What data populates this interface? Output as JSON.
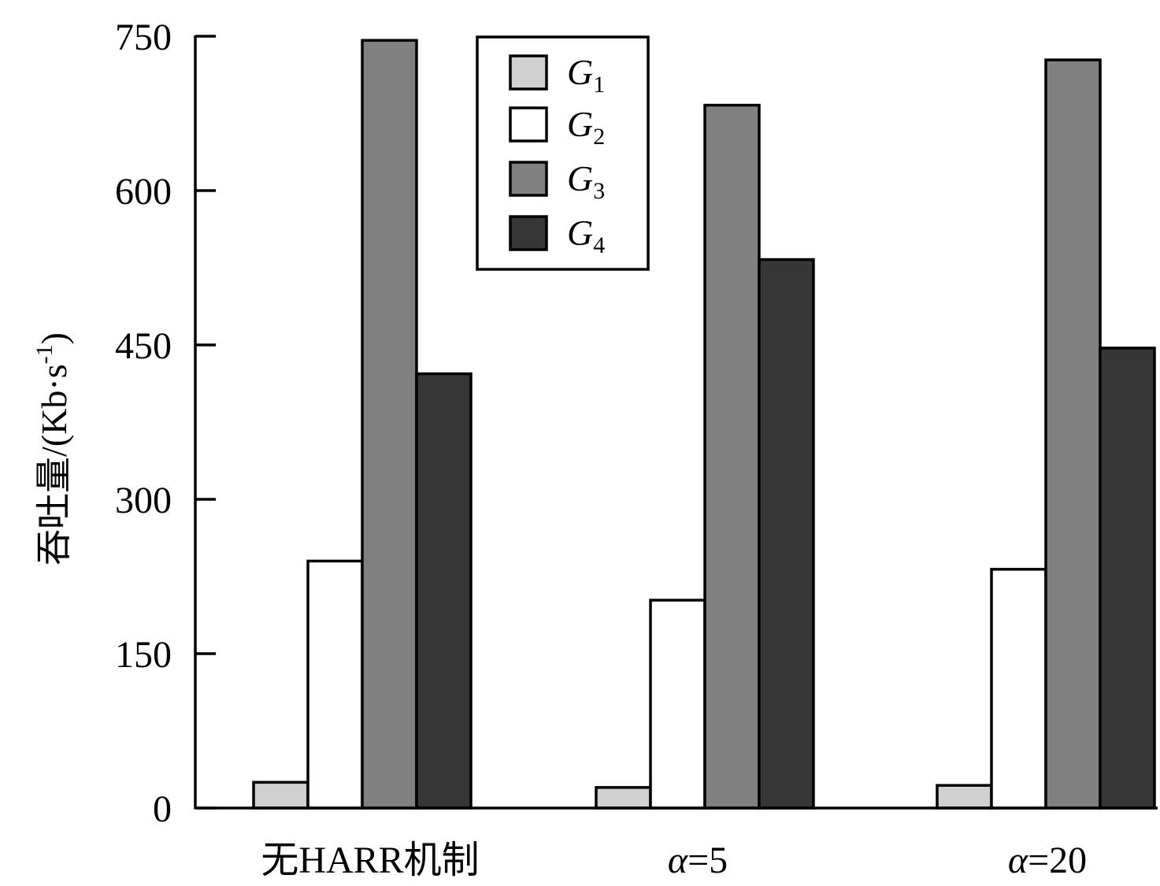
{
  "chart_data": {
    "type": "bar",
    "title": "",
    "xlabel": "",
    "ylabel": "吞吐量/(Kb·s",
    "ylabel_sup": "-1",
    "ylabel_close": ")",
    "categories": [
      "无HARR机制",
      "α=5",
      "α=20"
    ],
    "category_parts": [
      {
        "prefix": "无HARR机制",
        "italic": "",
        "suffix": ""
      },
      {
        "prefix": "",
        "italic": "α",
        "suffix": "=5"
      },
      {
        "prefix": "",
        "italic": "α",
        "suffix": "=20"
      }
    ],
    "ylim": [
      0,
      750
    ],
    "yticks": [
      0,
      150,
      300,
      450,
      600,
      750
    ],
    "grid": false,
    "legend_position": "top-center",
    "series": [
      {
        "name": "G1",
        "symbol": "G",
        "sub": "1",
        "color": "#d0d0d0",
        "values": [
          25,
          20,
          22
        ]
      },
      {
        "name": "G2",
        "symbol": "G",
        "sub": "2",
        "color": "#ffffff",
        "values": [
          240,
          202,
          232
        ]
      },
      {
        "name": "G3",
        "symbol": "G",
        "sub": "3",
        "color": "#808080",
        "values": [
          746,
          683,
          727
        ]
      },
      {
        "name": "G4",
        "symbol": "G",
        "sub": "4",
        "color": "#363636",
        "values": [
          422,
          533,
          447
        ]
      }
    ]
  }
}
